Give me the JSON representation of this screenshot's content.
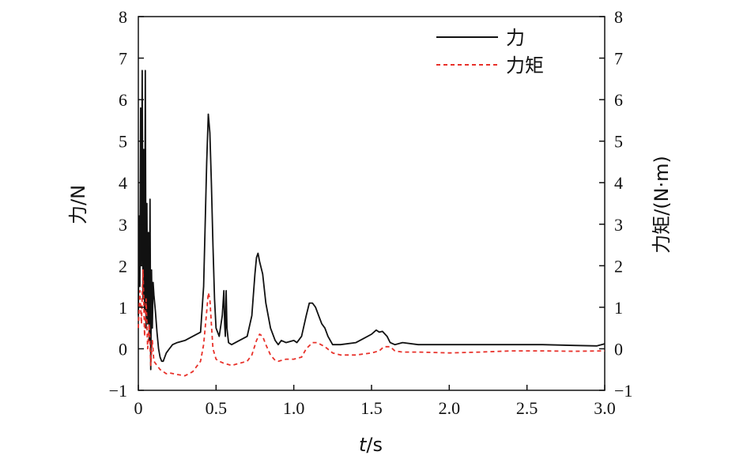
{
  "chart_data": {
    "type": "line",
    "xlabel_italic": "t",
    "xlabel_unit": "/s",
    "ylabel_left": "力/N",
    "ylabel_right": "力矩/(N·m)",
    "xlim": [
      0,
      3.0
    ],
    "ylim": [
      -1,
      8
    ],
    "y2lim": [
      -1,
      8
    ],
    "xticks": [
      "0",
      "0.5",
      "1.0",
      "1.5",
      "2.0",
      "2.5",
      "3.0"
    ],
    "xtick_values": [
      0,
      0.5,
      1.0,
      1.5,
      2.0,
      2.5,
      3.0
    ],
    "yticks": [
      "−1",
      "0",
      "1",
      "2",
      "3",
      "4",
      "5",
      "6",
      "7",
      "8"
    ],
    "ytick_values": [
      -1,
      0,
      1,
      2,
      3,
      4,
      5,
      6,
      7,
      8
    ],
    "grid": false,
    "legend_position": "top-right",
    "colors": {
      "force": "#111111",
      "torque": "#e8312a"
    },
    "series": [
      {
        "name": "力",
        "axis": "left",
        "style": "solid",
        "x": [
          0.0,
          0.005,
          0.01,
          0.015,
          0.02,
          0.025,
          0.03,
          0.035,
          0.04,
          0.045,
          0.05,
          0.055,
          0.06,
          0.065,
          0.07,
          0.075,
          0.08,
          0.085,
          0.09,
          0.095,
          0.1,
          0.11,
          0.12,
          0.13,
          0.14,
          0.15,
          0.16,
          0.17,
          0.18,
          0.2,
          0.22,
          0.25,
          0.3,
          0.35,
          0.4,
          0.42,
          0.44,
          0.45,
          0.46,
          0.47,
          0.48,
          0.49,
          0.5,
          0.52,
          0.54,
          0.55,
          0.555,
          0.56,
          0.565,
          0.57,
          0.58,
          0.6,
          0.65,
          0.7,
          0.73,
          0.75,
          0.76,
          0.77,
          0.78,
          0.8,
          0.82,
          0.85,
          0.88,
          0.9,
          0.92,
          0.95,
          1.0,
          1.02,
          1.05,
          1.08,
          1.1,
          1.12,
          1.14,
          1.16,
          1.18,
          1.2,
          1.22,
          1.25,
          1.27,
          1.3,
          1.4,
          1.45,
          1.5,
          1.53,
          1.55,
          1.57,
          1.6,
          1.62,
          1.65,
          1.7,
          1.8,
          2.0,
          2.2,
          2.4,
          2.6,
          2.8,
          2.95,
          3.0
        ],
        "values": [
          0.8,
          3.2,
          1.5,
          5.8,
          2.0,
          6.7,
          1.2,
          4.8,
          0.9,
          6.7,
          0.5,
          3.5,
          0.6,
          2.8,
          0.2,
          3.6,
          -0.5,
          1.9,
          0.5,
          1.6,
          1.3,
          0.9,
          0.4,
          0.0,
          -0.2,
          -0.3,
          -0.3,
          -0.2,
          -0.1,
          0.0,
          0.1,
          0.15,
          0.2,
          0.3,
          0.4,
          1.5,
          4.5,
          5.65,
          5.2,
          4.0,
          2.5,
          1.2,
          0.5,
          0.3,
          0.8,
          1.4,
          0.6,
          0.3,
          1.4,
          0.5,
          0.15,
          0.1,
          0.2,
          0.3,
          0.8,
          1.8,
          2.2,
          2.3,
          2.1,
          1.8,
          1.1,
          0.5,
          0.2,
          0.1,
          0.2,
          0.15,
          0.2,
          0.15,
          0.3,
          0.8,
          1.1,
          1.1,
          1.0,
          0.8,
          0.6,
          0.5,
          0.3,
          0.1,
          0.1,
          0.1,
          0.15,
          0.25,
          0.35,
          0.45,
          0.4,
          0.42,
          0.3,
          0.15,
          0.1,
          0.15,
          0.1,
          0.1,
          0.1,
          0.1,
          0.1,
          0.08,
          0.07,
          0.12
        ]
      },
      {
        "name": "力矩",
        "axis": "right",
        "style": "dashed",
        "x": [
          0.0,
          0.01,
          0.02,
          0.03,
          0.04,
          0.05,
          0.06,
          0.07,
          0.08,
          0.09,
          0.1,
          0.12,
          0.14,
          0.16,
          0.18,
          0.2,
          0.25,
          0.3,
          0.35,
          0.4,
          0.42,
          0.44,
          0.45,
          0.46,
          0.47,
          0.48,
          0.5,
          0.52,
          0.55,
          0.6,
          0.65,
          0.7,
          0.73,
          0.76,
          0.78,
          0.8,
          0.82,
          0.85,
          0.88,
          0.9,
          0.95,
          1.0,
          1.05,
          1.08,
          1.12,
          1.15,
          1.2,
          1.25,
          1.3,
          1.4,
          1.5,
          1.55,
          1.58,
          1.62,
          1.65,
          1.7,
          1.8,
          2.0,
          2.2,
          2.4,
          2.6,
          2.8,
          3.0
        ],
        "values": [
          0.5,
          1.4,
          0.6,
          1.9,
          0.3,
          1.2,
          0.0,
          0.6,
          -0.4,
          0.2,
          -0.3,
          -0.4,
          -0.5,
          -0.55,
          -0.6,
          -0.58,
          -0.62,
          -0.65,
          -0.55,
          -0.3,
          0.1,
          0.9,
          1.35,
          1.2,
          0.6,
          0.0,
          -0.25,
          -0.3,
          -0.35,
          -0.4,
          -0.35,
          -0.3,
          -0.15,
          0.2,
          0.35,
          0.3,
          0.1,
          -0.15,
          -0.28,
          -0.3,
          -0.25,
          -0.25,
          -0.2,
          0.0,
          0.15,
          0.15,
          0.05,
          -0.1,
          -0.15,
          -0.15,
          -0.1,
          -0.05,
          0.05,
          0.05,
          -0.05,
          -0.08,
          -0.08,
          -0.1,
          -0.08,
          -0.05,
          -0.05,
          -0.06,
          -0.05
        ]
      }
    ]
  }
}
